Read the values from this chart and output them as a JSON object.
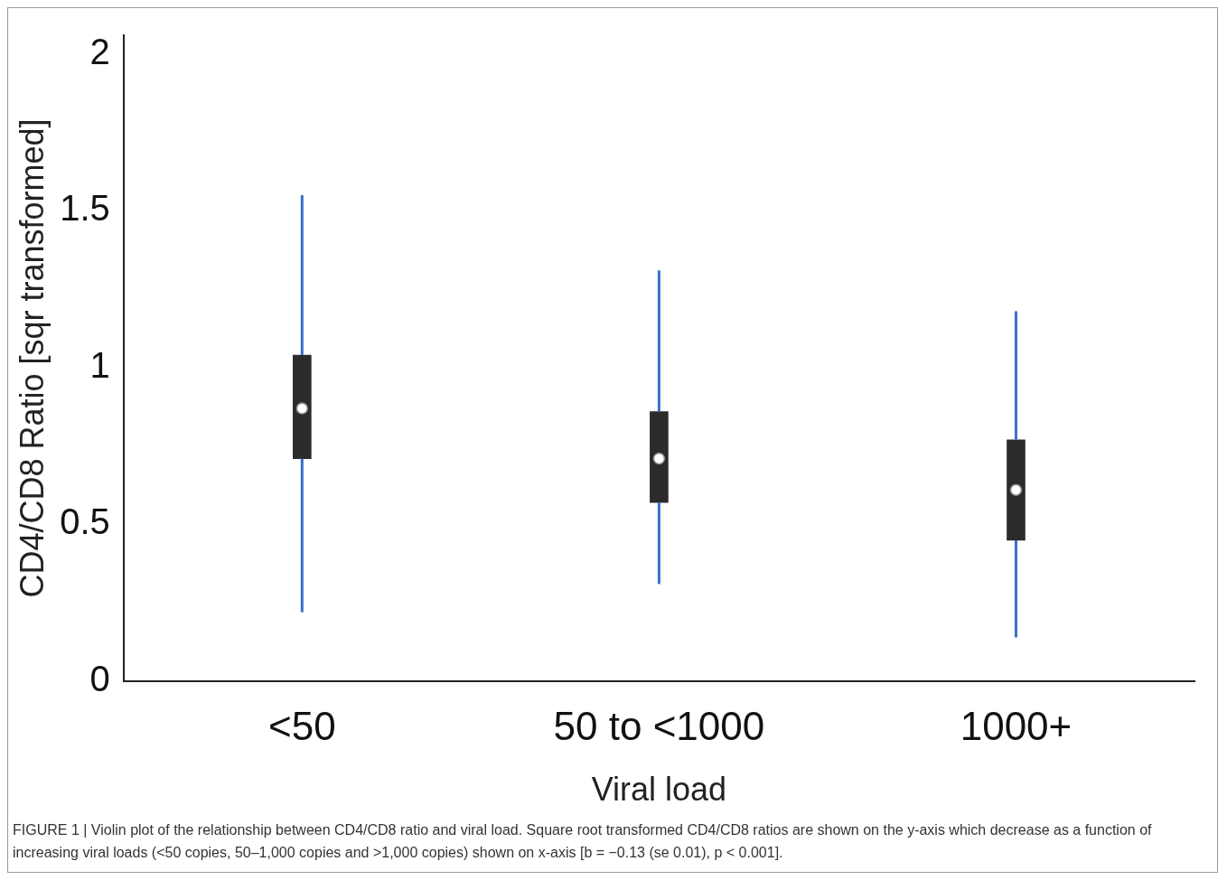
{
  "chart_data": {
    "type": "box",
    "xlabel": "Viral load",
    "ylabel": "CD4/CD8 Ratio [sqr transformed]",
    "categories": [
      "<50",
      "50 to <1000",
      "1000+"
    ],
    "boxes": [
      {
        "low": 0.22,
        "q1": 0.71,
        "median": 0.87,
        "q3": 1.04,
        "high": 1.55
      },
      {
        "low": 0.31,
        "q1": 0.57,
        "median": 0.71,
        "q3": 0.86,
        "high": 1.31
      },
      {
        "low": 0.14,
        "q1": 0.45,
        "median": 0.61,
        "q3": 0.77,
        "high": 1.18
      }
    ],
    "color": "#2b2b2b",
    "ylim": [
      0,
      2.06
    ],
    "yticks": [
      0,
      0.5,
      1,
      1.5,
      2
    ],
    "grid": false,
    "legend": false,
    "annotations": [
      "FIGURE 1 | Violin plot of the relationship between CD4/CD8 ratio and viral load. Square root transformed CD4/CD8 ratios are shown on the y-axis which decrease as a function of increasing viral loads (<50 copies, 50–1,000 copies and >1,000 copies) shown on x-axis [b = −0.13 (se 0.01), p < 0.001]."
    ]
  }
}
